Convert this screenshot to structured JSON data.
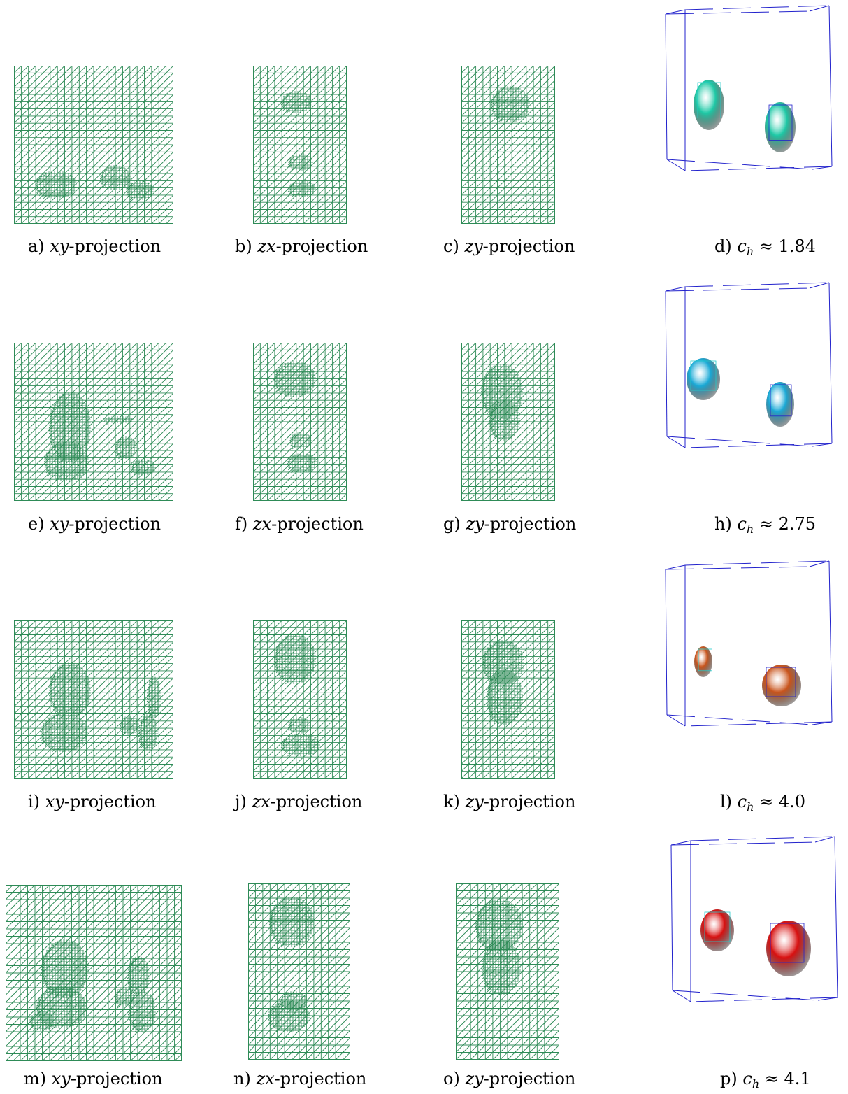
{
  "figure": {
    "rows": [
      {
        "panels": [
          {
            "letter": "a)",
            "axis": "xy",
            "suffix": "-projection"
          },
          {
            "letter": "b)",
            "axis": "zx",
            "suffix": "-projection"
          },
          {
            "letter": "c)",
            "axis": "zy",
            "suffix": "-projection"
          },
          {
            "letter": "d)",
            "symbol": "c",
            "subscript": "h",
            "relation": "≈",
            "value": "1.84",
            "color": "#1ec9a6"
          }
        ]
      },
      {
        "panels": [
          {
            "letter": "e)",
            "axis": "xy",
            "suffix": "-projection"
          },
          {
            "letter": "f)",
            "axis": "zx",
            "suffix": "-projection"
          },
          {
            "letter": "g)",
            "axis": "zy",
            "suffix": "-projection"
          },
          {
            "letter": "h)",
            "symbol": "c",
            "subscript": "h",
            "relation": "≈",
            "value": "2.75",
            "color": "#1aa9d6"
          }
        ]
      },
      {
        "panels": [
          {
            "letter": "i)",
            "axis": "xy",
            "suffix": "-projection"
          },
          {
            "letter": "j)",
            "axis": "zx",
            "suffix": "-projection"
          },
          {
            "letter": "k)",
            "axis": "zy",
            "suffix": "-projection"
          },
          {
            "letter": "l)",
            "symbol": "c",
            "subscript": "h",
            "relation": "≈",
            "value": "4.0",
            "color": "#c9541c"
          }
        ]
      },
      {
        "panels": [
          {
            "letter": "m)",
            "axis": "xy",
            "suffix": "-projection"
          },
          {
            "letter": "n)",
            "axis": "zx",
            "suffix": "-projection"
          },
          {
            "letter": "o)",
            "axis": "zy",
            "suffix": "-projection"
          },
          {
            "letter": "p)",
            "symbol": "c",
            "subscript": "h",
            "relation": "≈",
            "value": "4.1",
            "color": "#d81010"
          }
        ]
      }
    ],
    "mesh_color": "#2e8b57",
    "box_color": "#2222cc"
  }
}
